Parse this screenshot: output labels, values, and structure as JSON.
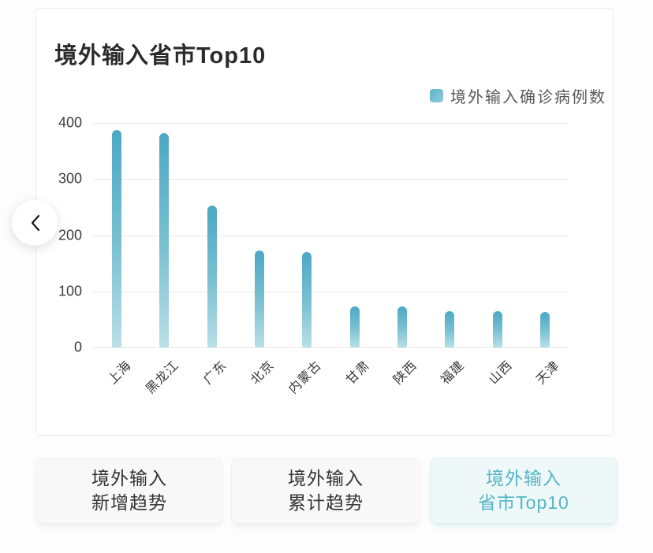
{
  "card": {
    "title": "境外输入省市Top10"
  },
  "legend": {
    "label": "境外输入确诊病例数",
    "marker_color_top": "#5FB3CA",
    "marker_color_bottom": "#8FCBDA"
  },
  "nav": {
    "prev_icon": "chevron-left"
  },
  "tabs": [
    {
      "id": "new-trend",
      "line1": "境外输入",
      "line2": "新增趋势",
      "active": false
    },
    {
      "id": "cumulative-trend",
      "line1": "境外输入",
      "line2": "累计趋势",
      "active": false
    },
    {
      "id": "province-top10",
      "line1": "境外输入",
      "line2": "省市Top10",
      "active": true
    }
  ],
  "colors": {
    "accent_teal": "#55B6C6",
    "active_tab_bg": "#EEF8F9",
    "active_tab_border": "#DCEDF0",
    "gridline": "#E9E9E9"
  },
  "chart_data": {
    "type": "bar",
    "title": "境外输入省市Top10",
    "legend": [
      "境外输入确诊病例数"
    ],
    "legend_position": "top-right",
    "categories": [
      "上海",
      "黑龙江",
      "广东",
      "北京",
      "内蒙古",
      "甘肃",
      "陕西",
      "福建",
      "山西",
      "天津"
    ],
    "values": [
      387,
      382,
      253,
      172,
      170,
      73,
      73,
      65,
      65,
      63
    ],
    "xlabel": "",
    "ylabel": "",
    "ylim": [
      0,
      400
    ],
    "yticks": [
      0,
      100,
      200,
      300,
      400
    ],
    "grid": true,
    "bar_gradient": [
      "#4BA8C5",
      "#79C0D1",
      "#B9DFE8"
    ]
  }
}
